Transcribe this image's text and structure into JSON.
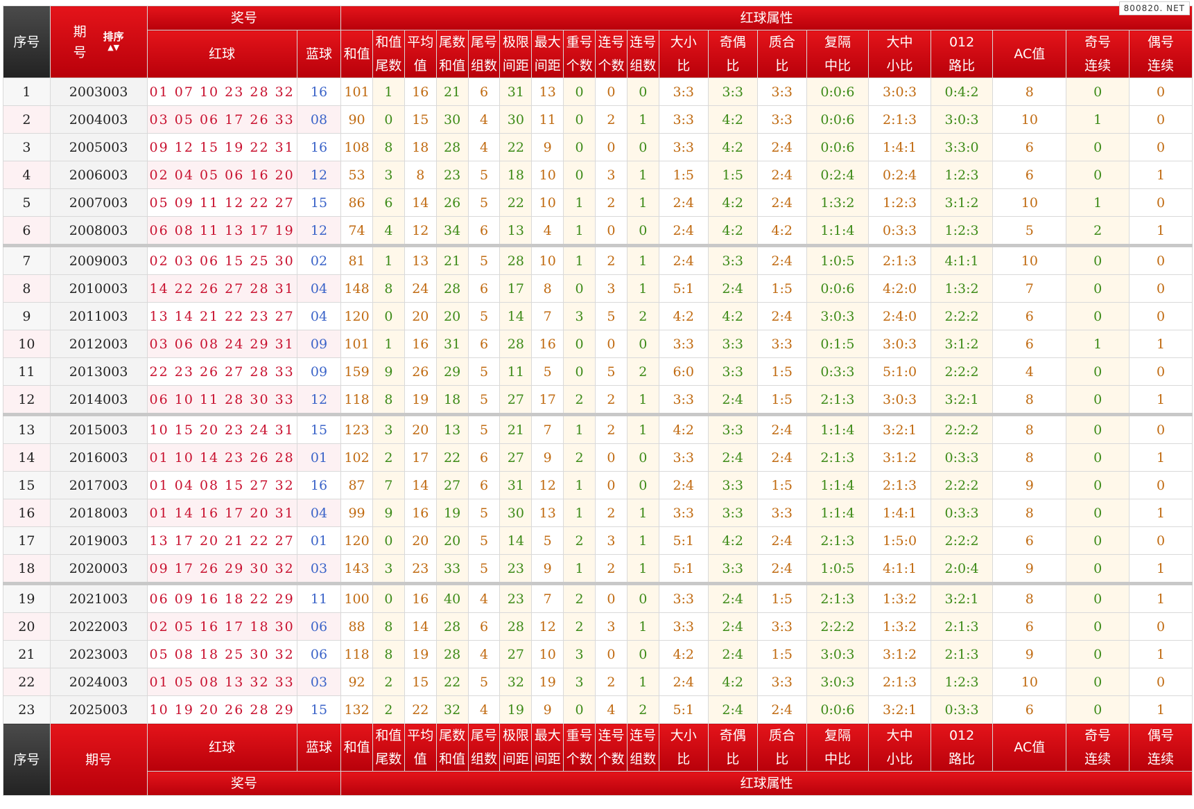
{
  "header": {
    "seq": "序号",
    "period_top": "期",
    "period_bottom": "号",
    "period_footer": "期号",
    "sort_label": "排序",
    "sort_arrows": "▲▼",
    "prize_group": "奖号",
    "attr_group": "红球属性",
    "red": "红球",
    "blue": "蓝球",
    "cols": [
      {
        "l1": "和值",
        "l2": ""
      },
      {
        "l1": "和值",
        "l2": "尾数"
      },
      {
        "l1": "平均",
        "l2": "值"
      },
      {
        "l1": "尾数",
        "l2": "和值"
      },
      {
        "l1": "尾号",
        "l2": "组数"
      },
      {
        "l1": "极限",
        "l2": "间距"
      },
      {
        "l1": "最大",
        "l2": "间距"
      },
      {
        "l1": "重号",
        "l2": "个数"
      },
      {
        "l1": "连号",
        "l2": "个数"
      },
      {
        "l1": "连号",
        "l2": "组数"
      },
      {
        "l1": "大小",
        "l2": "比"
      },
      {
        "l1": "奇偶",
        "l2": "比"
      },
      {
        "l1": "质合",
        "l2": "比"
      },
      {
        "l1": "复隔",
        "l2": "中比"
      },
      {
        "l1": "大中",
        "l2": "小比"
      },
      {
        "l1": "012",
        "l2": "路比"
      },
      {
        "l1": "AC值",
        "l2": ""
      },
      {
        "l1": "奇号",
        "l2": "连续"
      },
      {
        "l1": "偶号",
        "l2": "连续"
      }
    ]
  },
  "watermark": "800820. NET",
  "rows": [
    {
      "idx": "1",
      "period": "2003003",
      "red": "01 07 10 23 28 32",
      "blue": "16",
      "v": [
        "101",
        "1",
        "16",
        "21",
        "6",
        "31",
        "13",
        "0",
        "0",
        "0",
        "3:3",
        "3:3",
        "3:3",
        "0:0:6",
        "3:0:3",
        "0:4:2",
        "8",
        "0",
        "0"
      ]
    },
    {
      "idx": "2",
      "period": "2004003",
      "red": "03 05 06 17 26 33",
      "blue": "08",
      "v": [
        "90",
        "0",
        "15",
        "30",
        "4",
        "30",
        "11",
        "0",
        "2",
        "1",
        "3:3",
        "4:2",
        "3:3",
        "0:0:6",
        "2:1:3",
        "3:0:3",
        "10",
        "1",
        "0"
      ]
    },
    {
      "idx": "3",
      "period": "2005003",
      "red": "09 12 15 19 22 31",
      "blue": "16",
      "v": [
        "108",
        "8",
        "18",
        "28",
        "4",
        "22",
        "9",
        "0",
        "0",
        "0",
        "3:3",
        "4:2",
        "2:4",
        "0:0:6",
        "1:4:1",
        "3:3:0",
        "6",
        "0",
        "0"
      ]
    },
    {
      "idx": "4",
      "period": "2006003",
      "red": "02 04 05 06 16 20",
      "blue": "12",
      "v": [
        "53",
        "3",
        "8",
        "23",
        "5",
        "18",
        "10",
        "0",
        "3",
        "1",
        "1:5",
        "1:5",
        "2:4",
        "0:2:4",
        "0:2:4",
        "1:2:3",
        "6",
        "0",
        "1"
      ]
    },
    {
      "idx": "5",
      "period": "2007003",
      "red": "05 09 11 12 22 27",
      "blue": "15",
      "v": [
        "86",
        "6",
        "14",
        "26",
        "5",
        "22",
        "10",
        "1",
        "2",
        "1",
        "2:4",
        "4:2",
        "2:4",
        "1:3:2",
        "1:2:3",
        "3:1:2",
        "10",
        "1",
        "0"
      ]
    },
    {
      "idx": "6",
      "period": "2008003",
      "red": "06 08 11 13 17 19",
      "blue": "12",
      "v": [
        "74",
        "4",
        "12",
        "34",
        "6",
        "13",
        "4",
        "1",
        "0",
        "0",
        "2:4",
        "4:2",
        "4:2",
        "1:1:4",
        "0:3:3",
        "1:2:3",
        "5",
        "2",
        "1"
      ]
    },
    {
      "idx": "7",
      "period": "2009003",
      "red": "02 03 06 15 25 30",
      "blue": "02",
      "v": [
        "81",
        "1",
        "13",
        "21",
        "5",
        "28",
        "10",
        "1",
        "2",
        "1",
        "2:4",
        "3:3",
        "2:4",
        "1:0:5",
        "2:1:3",
        "4:1:1",
        "10",
        "0",
        "0"
      ]
    },
    {
      "idx": "8",
      "period": "2010003",
      "red": "14 22 26 27 28 31",
      "blue": "04",
      "v": [
        "148",
        "8",
        "24",
        "28",
        "6",
        "17",
        "8",
        "0",
        "3",
        "1",
        "5:1",
        "2:4",
        "1:5",
        "0:0:6",
        "4:2:0",
        "1:3:2",
        "7",
        "0",
        "0"
      ]
    },
    {
      "idx": "9",
      "period": "2011003",
      "red": "13 14 21 22 23 27",
      "blue": "04",
      "v": [
        "120",
        "0",
        "20",
        "20",
        "5",
        "14",
        "7",
        "3",
        "5",
        "2",
        "4:2",
        "4:2",
        "2:4",
        "3:0:3",
        "2:4:0",
        "2:2:2",
        "6",
        "0",
        "0"
      ]
    },
    {
      "idx": "10",
      "period": "2012003",
      "red": "03 06 08 24 29 31",
      "blue": "09",
      "v": [
        "101",
        "1",
        "16",
        "31",
        "6",
        "28",
        "16",
        "0",
        "0",
        "0",
        "3:3",
        "3:3",
        "3:3",
        "0:1:5",
        "3:0:3",
        "3:1:2",
        "6",
        "1",
        "1"
      ]
    },
    {
      "idx": "11",
      "period": "2013003",
      "red": "22 23 26 27 28 33",
      "blue": "09",
      "v": [
        "159",
        "9",
        "26",
        "29",
        "5",
        "11",
        "5",
        "0",
        "5",
        "2",
        "6:0",
        "3:3",
        "1:5",
        "0:3:3",
        "5:1:0",
        "2:2:2",
        "4",
        "0",
        "0"
      ]
    },
    {
      "idx": "12",
      "period": "2014003",
      "red": "06 10 11 28 30 33",
      "blue": "12",
      "v": [
        "118",
        "8",
        "19",
        "18",
        "5",
        "27",
        "17",
        "2",
        "2",
        "1",
        "3:3",
        "2:4",
        "1:5",
        "2:1:3",
        "3:0:3",
        "3:2:1",
        "8",
        "0",
        "1"
      ]
    },
    {
      "idx": "13",
      "period": "2015003",
      "red": "10 15 20 23 24 31",
      "blue": "15",
      "v": [
        "123",
        "3",
        "20",
        "13",
        "5",
        "21",
        "7",
        "1",
        "2",
        "1",
        "4:2",
        "3:3",
        "2:4",
        "1:1:4",
        "3:2:1",
        "2:2:2",
        "8",
        "0",
        "0"
      ]
    },
    {
      "idx": "14",
      "period": "2016003",
      "red": "01 10 14 23 26 28",
      "blue": "01",
      "v": [
        "102",
        "2",
        "17",
        "22",
        "6",
        "27",
        "9",
        "2",
        "0",
        "0",
        "3:3",
        "2:4",
        "2:4",
        "2:1:3",
        "3:1:2",
        "0:3:3",
        "8",
        "0",
        "1"
      ]
    },
    {
      "idx": "15",
      "period": "2017003",
      "red": "01 04 08 15 27 32",
      "blue": "16",
      "v": [
        "87",
        "7",
        "14",
        "27",
        "6",
        "31",
        "12",
        "1",
        "0",
        "0",
        "2:4",
        "3:3",
        "1:5",
        "1:1:4",
        "2:1:3",
        "2:2:2",
        "9",
        "0",
        "0"
      ]
    },
    {
      "idx": "16",
      "period": "2018003",
      "red": "01 14 16 17 20 31",
      "blue": "04",
      "v": [
        "99",
        "9",
        "16",
        "19",
        "5",
        "30",
        "13",
        "1",
        "2",
        "1",
        "3:3",
        "3:3",
        "3:3",
        "1:1:4",
        "1:4:1",
        "0:3:3",
        "8",
        "0",
        "1"
      ]
    },
    {
      "idx": "17",
      "period": "2019003",
      "red": "13 17 20 21 22 27",
      "blue": "01",
      "v": [
        "120",
        "0",
        "20",
        "20",
        "5",
        "14",
        "5",
        "2",
        "3",
        "1",
        "5:1",
        "4:2",
        "2:4",
        "2:1:3",
        "1:5:0",
        "2:2:2",
        "6",
        "0",
        "0"
      ]
    },
    {
      "idx": "18",
      "period": "2020003",
      "red": "09 17 26 29 30 32",
      "blue": "03",
      "v": [
        "143",
        "3",
        "23",
        "33",
        "5",
        "23",
        "9",
        "1",
        "2",
        "1",
        "5:1",
        "3:3",
        "2:4",
        "1:0:5",
        "4:1:1",
        "2:0:4",
        "9",
        "0",
        "1"
      ]
    },
    {
      "idx": "19",
      "period": "2021003",
      "red": "06 09 16 18 22 29",
      "blue": "11",
      "v": [
        "100",
        "0",
        "16",
        "40",
        "4",
        "23",
        "7",
        "2",
        "0",
        "0",
        "3:3",
        "2:4",
        "1:5",
        "2:1:3",
        "1:3:2",
        "3:2:1",
        "8",
        "0",
        "1"
      ]
    },
    {
      "idx": "20",
      "period": "2022003",
      "red": "02 05 16 17 18 30",
      "blue": "06",
      "v": [
        "88",
        "8",
        "14",
        "28",
        "6",
        "28",
        "12",
        "2",
        "3",
        "1",
        "3:3",
        "2:4",
        "3:3",
        "2:2:2",
        "1:3:2",
        "2:1:3",
        "6",
        "0",
        "0"
      ]
    },
    {
      "idx": "21",
      "period": "2023003",
      "red": "05 08 18 25 30 32",
      "blue": "06",
      "v": [
        "118",
        "8",
        "19",
        "28",
        "4",
        "27",
        "10",
        "3",
        "0",
        "0",
        "4:2",
        "2:4",
        "1:5",
        "3:0:3",
        "3:1:2",
        "2:1:3",
        "9",
        "0",
        "1"
      ]
    },
    {
      "idx": "22",
      "period": "2024003",
      "red": "01 05 08 13 32 33",
      "blue": "03",
      "v": [
        "92",
        "2",
        "15",
        "22",
        "5",
        "32",
        "19",
        "3",
        "2",
        "1",
        "2:4",
        "4:2",
        "3:3",
        "3:0:3",
        "2:1:3",
        "1:2:3",
        "10",
        "0",
        "0"
      ]
    },
    {
      "idx": "23",
      "period": "2025003",
      "red": "10 19 20 26 28 29",
      "blue": "15",
      "v": [
        "132",
        "2",
        "22",
        "32",
        "4",
        "19",
        "9",
        "0",
        "4",
        "2",
        "5:1",
        "2:4",
        "2:4",
        "0:0:6",
        "3:2:1",
        "0:3:3",
        "6",
        "0",
        "1"
      ]
    }
  ]
}
